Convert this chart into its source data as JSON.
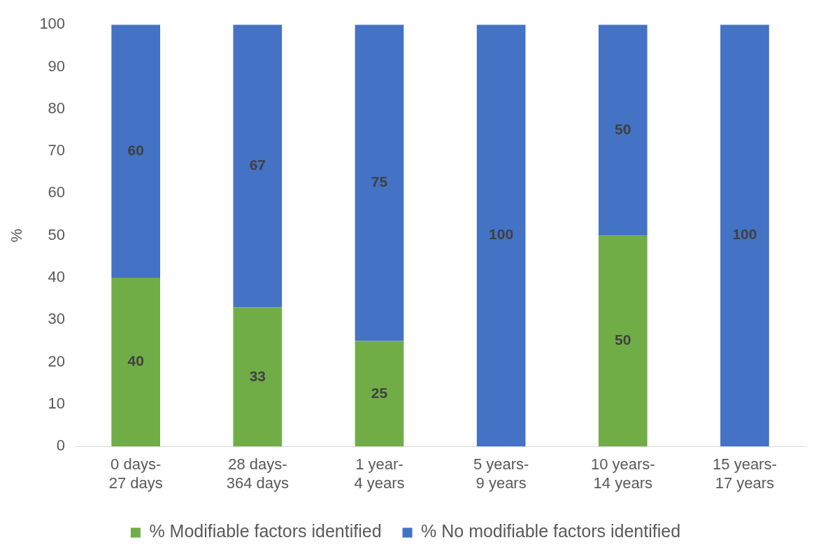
{
  "chart_data": {
    "type": "bar",
    "stacked": true,
    "ylabel": "%",
    "categories": [
      "0 days-27 days",
      "28 days-364 days",
      "1 year-4 years",
      "5 years-9 years",
      "10 years-14 years",
      "15 years-17 years"
    ],
    "series": [
      {
        "name": "% Modifiable factors identified",
        "color": "#70ad47",
        "values": [
          40,
          33,
          25,
          0,
          50,
          0
        ],
        "value_labels": [
          "40",
          "33",
          "25",
          null,
          "50",
          null
        ]
      },
      {
        "name": "% No modifiable factors identified",
        "color": "#4472c4",
        "values": [
          60,
          67,
          75,
          100,
          50,
          100
        ],
        "value_labels": [
          "60",
          "67",
          "75",
          "100",
          "50",
          "100"
        ]
      }
    ],
    "ylim": [
      0,
      100
    ],
    "yticks": [
      0,
      10,
      20,
      30,
      40,
      50,
      60,
      70,
      80,
      90,
      100
    ],
    "grid": false,
    "legend": "bottom"
  }
}
